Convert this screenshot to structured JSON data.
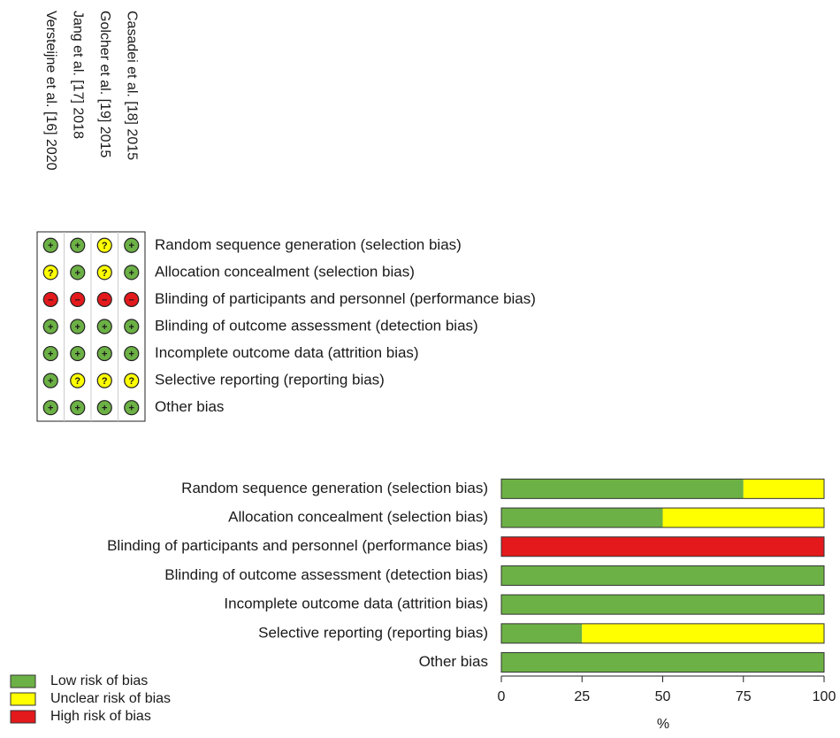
{
  "risk_grid": {
    "studies": [
      "Versteijne et al. [16] 2020",
      "Jang et al. [17] 2018",
      "Golcher et al. [19] 2015",
      "Casadei et al. [18] 2015"
    ],
    "symbols": [
      "+",
      "?",
      "−"
    ],
    "judgments": [
      [
        "+",
        "+",
        "?",
        "+"
      ],
      [
        "?",
        "+",
        "?",
        "+"
      ],
      [
        "−",
        "−",
        "−",
        "−"
      ],
      [
        "+",
        "+",
        "+",
        "+"
      ],
      [
        "+",
        "+",
        "+",
        "+"
      ],
      [
        "+",
        "?",
        "?",
        "?"
      ],
      [
        "+",
        "+",
        "+",
        "+"
      ]
    ]
  },
  "chart_data": {
    "type": "bar",
    "orientation": "horizontal",
    "stacked": true,
    "categories": [
      "Random sequence generation (selection bias)",
      "Allocation concealment (selection bias)",
      "Blinding of participants and personnel (performance bias)",
      "Blinding of outcome assessment (detection bias)",
      "Incomplete outcome data (attrition bias)",
      "Selective reporting (reporting bias)",
      "Other bias"
    ],
    "series": [
      {
        "name": "Low risk of bias",
        "color": "#6cb145",
        "values": [
          75,
          50,
          0,
          100,
          100,
          25,
          100
        ]
      },
      {
        "name": "Unclear risk of bias",
        "color": "#ffff00",
        "values": [
          25,
          50,
          0,
          0,
          0,
          75,
          0
        ]
      },
      {
        "name": "High risk of bias",
        "color": "#e3191c",
        "values": [
          0,
          0,
          100,
          0,
          0,
          0,
          0
        ]
      }
    ],
    "xlim": [
      0,
      100
    ],
    "xticks": [
      0,
      25,
      50,
      75,
      100
    ],
    "xlabel": "%",
    "legend": "bottom-left"
  }
}
